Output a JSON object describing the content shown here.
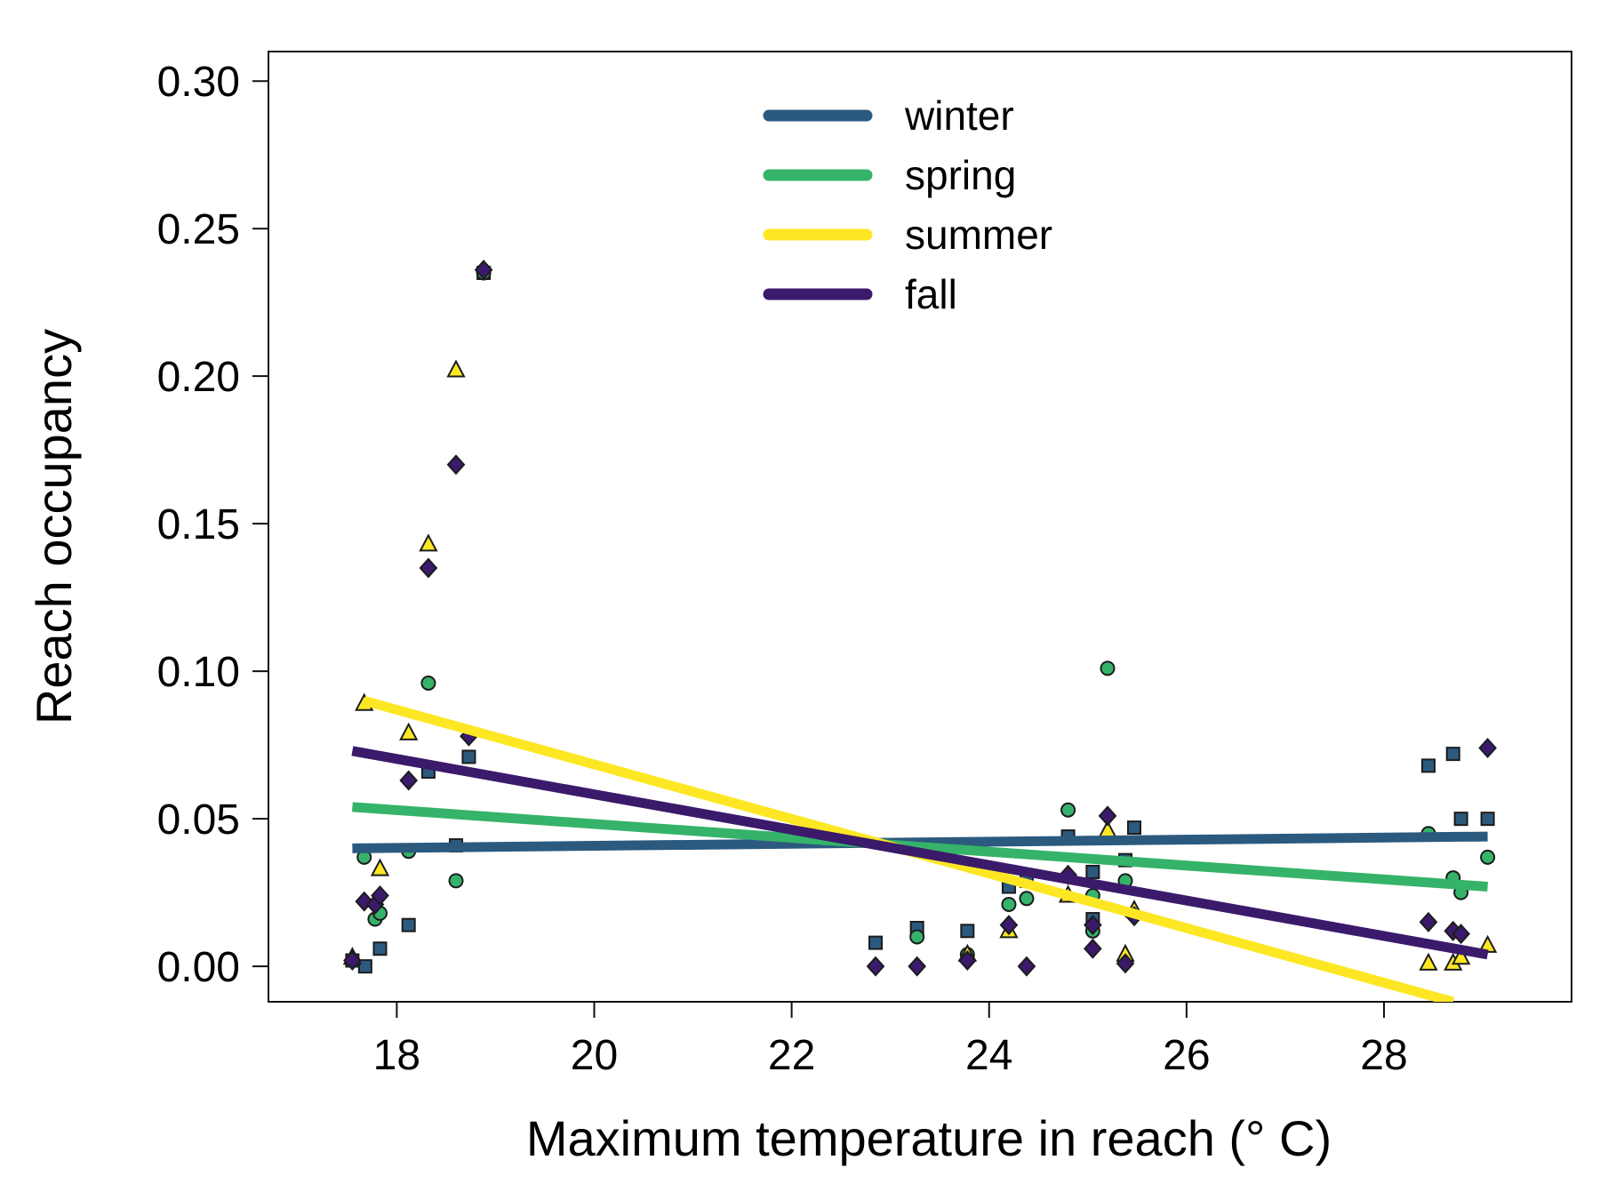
{
  "chart_data": {
    "type": "scatter",
    "xlabel": "Maximum temperature in reach (",
    "xlabel_unit": "° C",
    "xlabel_close": ")",
    "ylabel": "Reach occupancy",
    "xlim": [
      16.7,
      29.9
    ],
    "ylim": [
      -0.012,
      0.31
    ],
    "x_ticks": [
      18,
      20,
      22,
      24,
      26,
      28
    ],
    "y_ticks": [
      0.0,
      0.05,
      0.1,
      0.15,
      0.2,
      0.25,
      0.3
    ],
    "y_tick_labels": [
      "0.00",
      "0.05",
      "0.10",
      "0.15",
      "0.20",
      "0.25",
      "0.30"
    ],
    "grid": false,
    "legend": {
      "position": "top-center",
      "entries": [
        "winter",
        "spring",
        "summer",
        "fall"
      ]
    },
    "series": [
      {
        "name": "winter",
        "color": "#2c5a7f",
        "marker": "square",
        "points": [
          [
            17.55,
            0.002
          ],
          [
            17.68,
            0.0
          ],
          [
            17.83,
            0.006
          ],
          [
            18.12,
            0.014
          ],
          [
            18.32,
            0.066
          ],
          [
            18.6,
            0.041
          ],
          [
            18.73,
            0.071
          ],
          [
            18.88,
            0.235
          ],
          [
            22.85,
            0.008
          ],
          [
            23.27,
            0.013
          ],
          [
            23.78,
            0.012
          ],
          [
            24.2,
            0.027
          ],
          [
            24.38,
            0.029
          ],
          [
            24.8,
            0.044
          ],
          [
            25.05,
            0.032
          ],
          [
            25.05,
            0.016
          ],
          [
            25.38,
            0.036
          ],
          [
            25.47,
            0.047
          ],
          [
            28.45,
            0.068
          ],
          [
            28.7,
            0.072
          ],
          [
            28.78,
            0.05
          ],
          [
            29.05,
            0.05
          ]
        ],
        "trend": [
          [
            17.55,
            0.04
          ],
          [
            29.05,
            0.044
          ]
        ]
      },
      {
        "name": "spring",
        "color": "#35b36a",
        "marker": "circle",
        "points": [
          [
            17.67,
            0.037
          ],
          [
            17.78,
            0.016
          ],
          [
            17.83,
            0.018
          ],
          [
            18.12,
            0.039
          ],
          [
            18.32,
            0.096
          ],
          [
            18.6,
            0.029
          ],
          [
            18.88,
            0.235
          ],
          [
            23.27,
            0.01
          ],
          [
            23.78,
            0.004
          ],
          [
            24.2,
            0.021
          ],
          [
            24.38,
            0.023
          ],
          [
            24.8,
            0.053
          ],
          [
            25.05,
            0.024
          ],
          [
            25.05,
            0.012
          ],
          [
            25.2,
            0.101
          ],
          [
            25.38,
            0.029
          ],
          [
            28.45,
            0.045
          ],
          [
            28.7,
            0.03
          ],
          [
            28.78,
            0.025
          ],
          [
            29.05,
            0.037
          ]
        ],
        "trend": [
          [
            17.55,
            0.054
          ],
          [
            29.05,
            0.027
          ]
        ]
      },
      {
        "name": "summer",
        "color": "#fde725",
        "marker": "triangle",
        "points": [
          [
            17.55,
            0.003
          ],
          [
            17.67,
            0.089
          ],
          [
            17.83,
            0.033
          ],
          [
            18.12,
            0.079
          ],
          [
            18.32,
            0.143
          ],
          [
            18.6,
            0.202
          ],
          [
            23.78,
            0.004
          ],
          [
            24.2,
            0.012
          ],
          [
            24.8,
            0.024
          ],
          [
            25.2,
            0.046
          ],
          [
            25.38,
            0.004
          ],
          [
            25.47,
            0.019
          ],
          [
            28.45,
            0.001
          ],
          [
            28.7,
            0.001
          ],
          [
            28.78,
            0.003
          ],
          [
            29.05,
            0.007
          ]
        ],
        "trend": [
          [
            17.67,
            0.09
          ],
          [
            28.7,
            -0.012
          ]
        ]
      },
      {
        "name": "fall",
        "color": "#3b1a6b",
        "marker": "diamond",
        "points": [
          [
            17.55,
            0.002
          ],
          [
            17.67,
            0.022
          ],
          [
            17.78,
            0.021
          ],
          [
            17.83,
            0.024
          ],
          [
            18.12,
            0.063
          ],
          [
            18.32,
            0.135
          ],
          [
            18.6,
            0.17
          ],
          [
            18.73,
            0.078
          ],
          [
            18.88,
            0.236
          ],
          [
            22.85,
            0.0
          ],
          [
            23.27,
            0.0
          ],
          [
            23.78,
            0.002
          ],
          [
            24.2,
            0.014
          ],
          [
            24.38,
            0.0
          ],
          [
            24.8,
            0.031
          ],
          [
            25.05,
            0.006
          ],
          [
            25.05,
            0.014
          ],
          [
            25.2,
            0.051
          ],
          [
            25.38,
            0.001
          ],
          [
            25.47,
            0.017
          ],
          [
            28.45,
            0.015
          ],
          [
            28.7,
            0.012
          ],
          [
            28.78,
            0.011
          ],
          [
            29.05,
            0.074
          ]
        ],
        "trend": [
          [
            17.55,
            0.073
          ],
          [
            29.05,
            0.004
          ]
        ]
      }
    ]
  }
}
